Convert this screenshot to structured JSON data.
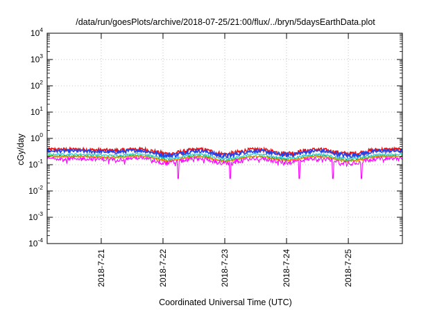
{
  "chart_data": {
    "type": "line",
    "title": "/data/run/goesPlots/archive/2018-07-25/21:00/flux/../bryn/5daysEarthData.plot",
    "xlabel": "Coordinated Universal Time (UTC)",
    "ylabel": "cGy/day",
    "yscale": "log",
    "ylim": [
      0.0001,
      10000
    ],
    "xlim": [
      "2018-07-20T03:00",
      "2018-07-25T21:00"
    ],
    "grid": true,
    "y_ticks": [
      {
        "base": "10",
        "exp": "-4",
        "value": 0.0001
      },
      {
        "base": "10",
        "exp": "-3",
        "value": 0.001
      },
      {
        "base": "10",
        "exp": "-2",
        "value": 0.01
      },
      {
        "base": "10",
        "exp": "-1",
        "value": 0.1
      },
      {
        "base": "10",
        "exp": "0",
        "value": 1
      },
      {
        "base": "10",
        "exp": "1",
        "value": 10
      },
      {
        "base": "10",
        "exp": "2",
        "value": 100
      },
      {
        "base": "10",
        "exp": "3",
        "value": 1000
      },
      {
        "base": "10",
        "exp": "4",
        "value": 10000
      }
    ],
    "x_ticks": [
      {
        "label": "2018-7-21",
        "value": "2018-07-21T00:00"
      },
      {
        "label": "2018-7-22",
        "value": "2018-07-22T00:00"
      },
      {
        "label": "2018-7-23",
        "value": "2018-07-23T00:00"
      },
      {
        "label": "2018-7-24",
        "value": "2018-07-24T00:00"
      },
      {
        "label": "2018-7-25",
        "value": "2018-07-25T00:00"
      }
    ],
    "series": [
      {
        "color": "#ee1111",
        "base": 0.33,
        "spread": 0.12,
        "dip": 0.0,
        "values": []
      },
      {
        "color": "#2244ee",
        "base": 0.29,
        "spread": 0.1,
        "dip": 0.0,
        "values": []
      },
      {
        "color": "#20c8c8",
        "base": 0.215,
        "spread": 0.04,
        "dip": 0.0,
        "values": []
      },
      {
        "color": "#22aa22",
        "base": 0.185,
        "spread": 0.03,
        "dip": 0.0,
        "values": []
      },
      {
        "color": "#ff8800",
        "base": 0.175,
        "spread": 0.03,
        "dip": 0.0,
        "values": []
      },
      {
        "color": "#ff00ff",
        "base": 0.15,
        "spread": 0.05,
        "dip": 0.35,
        "values": []
      }
    ],
    "daily_pattern": [
      {
        "time": "2018-07-20T12:00",
        "level": 1.15
      },
      {
        "time": "2018-07-21T06:00",
        "level": 1.05
      },
      {
        "time": "2018-07-21T14:00",
        "level": 1.2
      },
      {
        "time": "2018-07-22T02:00",
        "level": 0.78
      },
      {
        "time": "2018-07-22T14:00",
        "level": 1.15
      },
      {
        "time": "2018-07-23T00:00",
        "level": 0.75
      },
      {
        "time": "2018-07-23T12:00",
        "level": 1.15
      },
      {
        "time": "2018-07-24T00:00",
        "level": 0.82
      },
      {
        "time": "2018-07-24T12:00",
        "level": 1.15
      },
      {
        "time": "2018-07-25T00:00",
        "level": 0.78
      },
      {
        "time": "2018-07-25T14:00",
        "level": 1.15
      }
    ]
  }
}
